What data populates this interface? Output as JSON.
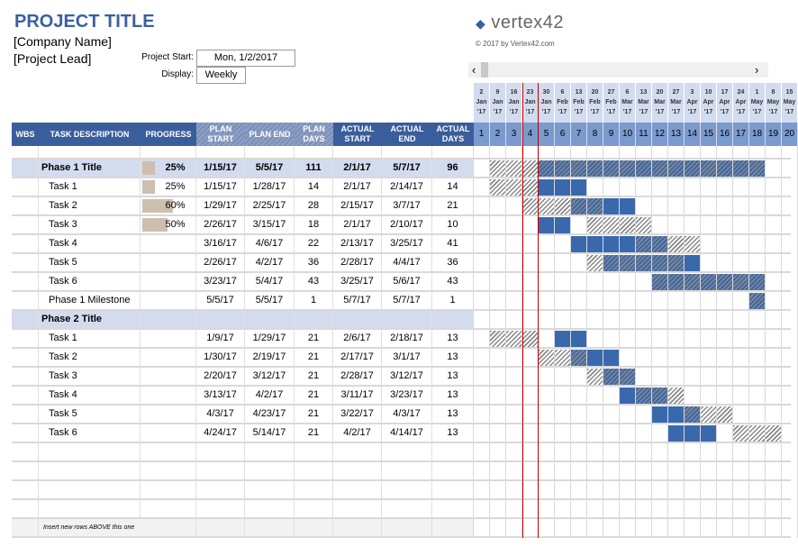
{
  "header": {
    "title": "PROJECT TITLE",
    "company": "[Company Name]",
    "lead": "[Project Lead]",
    "project_start_label": "Project Start:",
    "project_start": "Mon, 1/2/2017",
    "display_label": "Display:",
    "display": "Weekly",
    "logo": "vertex42",
    "copyright": "© 2017 by Vertex42.com"
  },
  "scroll": {
    "left": "‹",
    "right": "›"
  },
  "columns": [
    "WBS",
    "TASK DESCRIPTION",
    "PROGRESS",
    "PLAN START",
    "PLAN END",
    "PLAN DAYS",
    "ACTUAL START",
    "ACTUAL END",
    "ACTUAL DAYS"
  ],
  "weeks": [
    [
      "2",
      "Jan",
      "'17"
    ],
    [
      "9",
      "Jan",
      "'17"
    ],
    [
      "16",
      "Jan",
      "'17"
    ],
    [
      "23",
      "Jan",
      "'17"
    ],
    [
      "30",
      "Jan",
      "'17"
    ],
    [
      "6",
      "Feb",
      "'17"
    ],
    [
      "13",
      "Feb",
      "'17"
    ],
    [
      "20",
      "Feb",
      "'17"
    ],
    [
      "27",
      "Feb",
      "'17"
    ],
    [
      "6",
      "Mar",
      "'17"
    ],
    [
      "13",
      "Mar",
      "'17"
    ],
    [
      "20",
      "Mar",
      "'17"
    ],
    [
      "27",
      "Mar",
      "'17"
    ],
    [
      "3",
      "Apr",
      "'17"
    ],
    [
      "10",
      "Apr",
      "'17"
    ],
    [
      "17",
      "Apr",
      "'17"
    ],
    [
      "24",
      "Apr",
      "'17"
    ],
    [
      "1",
      "May",
      "'17"
    ],
    [
      "8",
      "May",
      "'17"
    ],
    [
      "15",
      "May",
      "'17"
    ]
  ],
  "week_numbers": [
    "1",
    "2",
    "3",
    "4",
    "5",
    "6",
    "7",
    "8",
    "9",
    "10",
    "11",
    "12",
    "13",
    "14",
    "15",
    "16",
    "17",
    "18",
    "19",
    "20"
  ],
  "colors": {
    "header": "#3a5d9c",
    "actual": "#3a68ad",
    "phase": "#d3dcee",
    "progress": "#cdbfae",
    "today": "#c00000"
  },
  "rows": [
    {
      "type": "phase",
      "name": "Phase 1 Title",
      "progress": "25%",
      "progress_value": 25,
      "plan_start": "1/15/17",
      "plan_end": "5/5/17",
      "plan_days": "111",
      "actual_start": "2/1/17",
      "actual_end": "5/7/17",
      "actual_days": "96"
    },
    {
      "type": "task",
      "name": "Task 1",
      "progress": "25%",
      "progress_value": 25,
      "plan_start": "1/15/17",
      "plan_end": "1/28/17",
      "plan_days": "14",
      "actual_start": "2/1/17",
      "actual_end": "2/14/17",
      "actual_days": "14"
    },
    {
      "type": "task",
      "name": "Task 2",
      "progress": "60%",
      "progress_value": 60,
      "plan_start": "1/29/17",
      "plan_end": "2/25/17",
      "plan_days": "28",
      "actual_start": "2/15/17",
      "actual_end": "3/7/17",
      "actual_days": "21"
    },
    {
      "type": "task",
      "name": "Task 3",
      "progress": "50%",
      "progress_value": 50,
      "plan_start": "2/26/17",
      "plan_end": "3/15/17",
      "plan_days": "18",
      "actual_start": "2/1/17",
      "actual_end": "2/10/17",
      "actual_days": "10"
    },
    {
      "type": "task",
      "name": "Task 4",
      "progress": "",
      "plan_start": "3/16/17",
      "plan_end": "4/6/17",
      "plan_days": "22",
      "actual_start": "2/13/17",
      "actual_end": "3/25/17",
      "actual_days": "41"
    },
    {
      "type": "task",
      "name": "Task 5",
      "progress": "",
      "plan_start": "2/26/17",
      "plan_end": "4/2/17",
      "plan_days": "36",
      "actual_start": "2/28/17",
      "actual_end": "4/4/17",
      "actual_days": "36"
    },
    {
      "type": "task",
      "name": "Task 6",
      "progress": "",
      "plan_start": "3/23/17",
      "plan_end": "5/4/17",
      "plan_days": "43",
      "actual_start": "3/25/17",
      "actual_end": "5/6/17",
      "actual_days": "43"
    },
    {
      "type": "task",
      "name": "Phase 1 Milestone",
      "progress": "",
      "plan_start": "5/5/17",
      "plan_end": "5/5/17",
      "plan_days": "1",
      "actual_start": "5/7/17",
      "actual_end": "5/7/17",
      "actual_days": "1"
    },
    {
      "type": "phase",
      "name": "Phase 2 Title",
      "progress": "",
      "plan_start": "",
      "plan_end": "",
      "plan_days": "",
      "actual_start": "",
      "actual_end": "",
      "actual_days": ""
    },
    {
      "type": "task",
      "name": "Task 1",
      "progress": "",
      "plan_start": "1/9/17",
      "plan_end": "1/29/17",
      "plan_days": "21",
      "actual_start": "2/6/17",
      "actual_end": "2/18/17",
      "actual_days": "13"
    },
    {
      "type": "task",
      "name": "Task 2",
      "progress": "",
      "plan_start": "1/30/17",
      "plan_end": "2/19/17",
      "plan_days": "21",
      "actual_start": "2/17/17",
      "actual_end": "3/1/17",
      "actual_days": "13"
    },
    {
      "type": "task",
      "name": "Task 3",
      "progress": "",
      "plan_start": "2/20/17",
      "plan_end": "3/12/17",
      "plan_days": "21",
      "actual_start": "2/28/17",
      "actual_end": "3/12/17",
      "actual_days": "13"
    },
    {
      "type": "task",
      "name": "Task 4",
      "progress": "",
      "plan_start": "3/13/17",
      "plan_end": "4/2/17",
      "plan_days": "21",
      "actual_start": "3/11/17",
      "actual_end": "3/23/17",
      "actual_days": "13"
    },
    {
      "type": "task",
      "name": "Task 5",
      "progress": "",
      "plan_start": "4/3/17",
      "plan_end": "4/23/17",
      "plan_days": "21",
      "actual_start": "3/22/17",
      "actual_end": "4/3/17",
      "actual_days": "13"
    },
    {
      "type": "task",
      "name": "Task 6",
      "progress": "",
      "plan_start": "4/24/17",
      "plan_end": "5/14/17",
      "plan_days": "21",
      "actual_start": "4/2/17",
      "actual_end": "4/14/17",
      "actual_days": "13"
    }
  ],
  "footer": "Insert new rows ABOVE this one"
}
